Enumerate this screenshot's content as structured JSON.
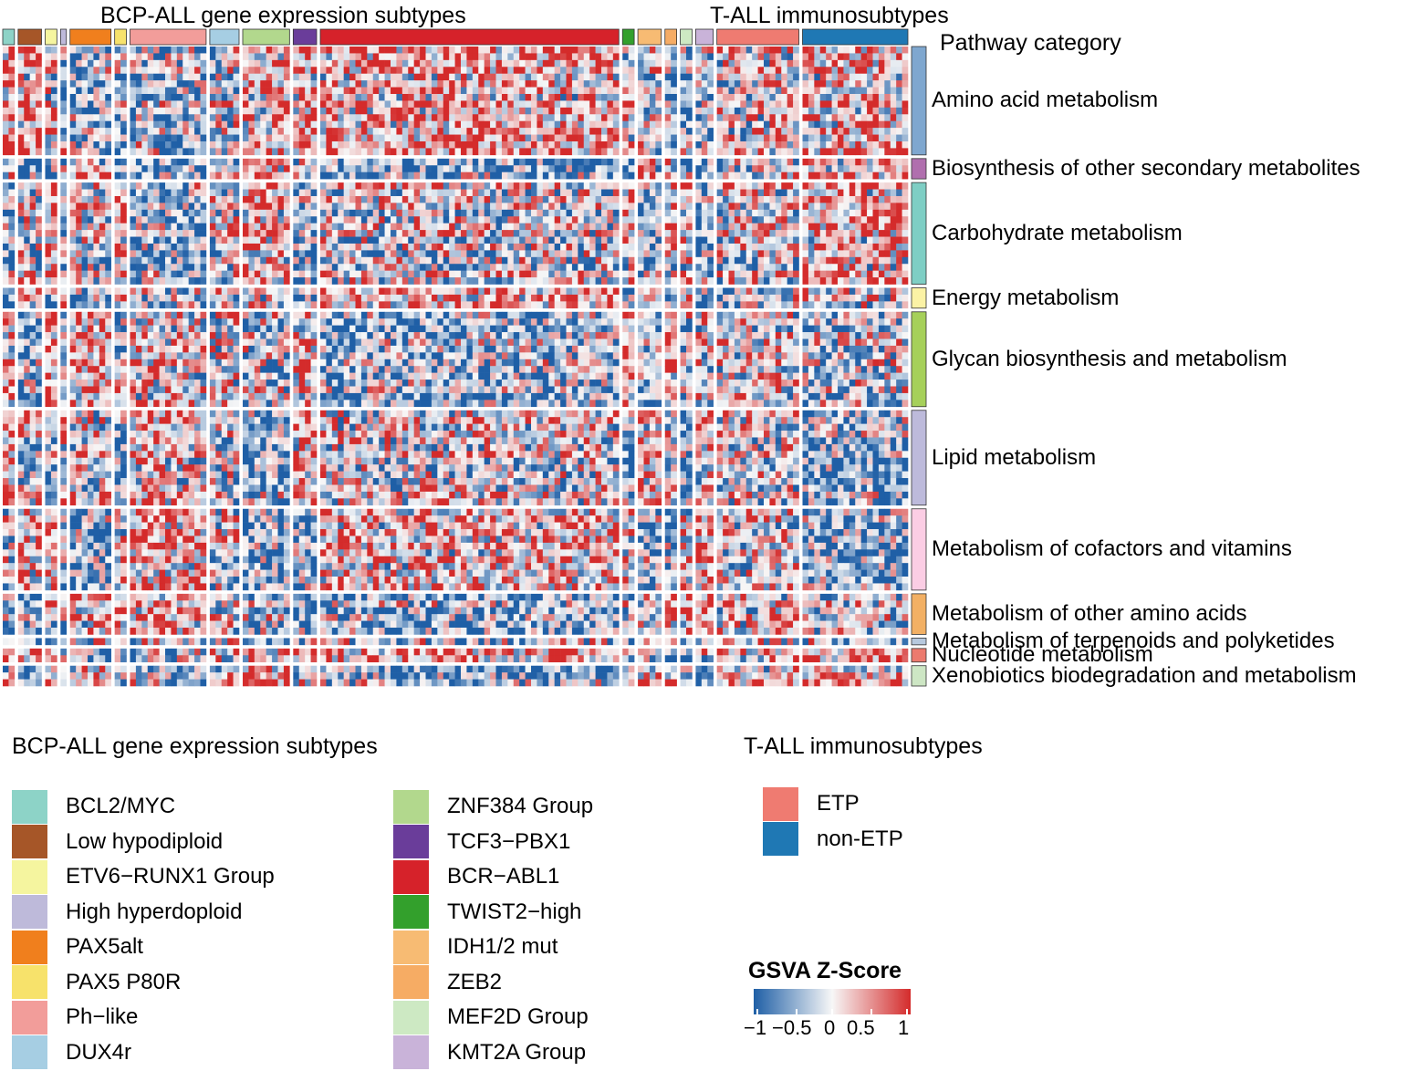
{
  "chart_data": {
    "type": "heatmap",
    "column_annotation_titles": [
      "BCP-ALL gene expression subtypes",
      "T-ALL immunosubtypes"
    ],
    "row_annotation_title": "Pathway category",
    "column_groups": [
      {
        "group": "BCL2/MYC",
        "n": 2
      },
      {
        "group": "Low hypodiploid",
        "n": 4
      },
      {
        "group": "ETV6−RUNX1 Group",
        "n": 2
      },
      {
        "group": "High hyperdoploid",
        "n": 1
      },
      {
        "group": "PAX5alt",
        "n": 7
      },
      {
        "group": "PAX5 P80R",
        "n": 2
      },
      {
        "group": "Ph−like",
        "n": 13
      },
      {
        "group": "DUX4r",
        "n": 5
      },
      {
        "group": "ZNF384 Group",
        "n": 8
      },
      {
        "group": "TCF3−PBX1",
        "n": 4
      },
      {
        "group": "BCR−ABL1",
        "n": 51
      },
      {
        "group": "TWIST2−high",
        "n": 2
      },
      {
        "group": "IDH1/2 mut",
        "n": 4
      },
      {
        "group": "ZEB2",
        "n": 2
      },
      {
        "group": "MEF2D Group",
        "n": 2
      },
      {
        "group": "KMT2A Group",
        "n": 3
      },
      {
        "group": "ETP",
        "n": 14
      },
      {
        "group": "non-ETP",
        "n": 18
      }
    ],
    "row_groups": [
      {
        "category": "Amino acid metabolism",
        "n": 16,
        "color": "#7fa7cf"
      },
      {
        "category": "Biosynthesis of other secondary metabolites",
        "n": 3,
        "color": "#b06fae"
      },
      {
        "category": "Carbohydrate metabolism",
        "n": 15,
        "color": "#7ecec4"
      },
      {
        "category": "Energy metabolism",
        "n": 3,
        "color": "#fbf2a5"
      },
      {
        "category": "Glycan biosynthesis and metabolism",
        "n": 14,
        "color": "#a6d05a"
      },
      {
        "category": "Lipid metabolism",
        "n": 14,
        "color": "#bdbadb"
      },
      {
        "category": "Metabolism of cofactors and vitamins",
        "n": 12,
        "color": "#fbcde4"
      },
      {
        "category": "Metabolism of other amino acids",
        "n": 6,
        "color": "#f2b064"
      },
      {
        "category": "Metabolism of terpenoids and polyketides",
        "n": 1,
        "color": "#b7c9de"
      },
      {
        "category": "Nucleotide metabolism",
        "n": 2,
        "color": "#ec7a6e"
      },
      {
        "category": "Xenobiotics biodegradation and metabolism",
        "n": 3,
        "color": "#cde6c4"
      }
    ],
    "value_range": [
      -1,
      1
    ],
    "colors": {
      "low": "#1f5fa6",
      "mid": "#f7f7f7",
      "high": "#d42b2b"
    }
  },
  "legend_bcp": {
    "title": "BCP-ALL gene expression subtypes",
    "items": [
      {
        "label": "BCL2/MYC",
        "color": "#8dd3c7"
      },
      {
        "label": "Low hypodiploid",
        "color": "#a65628"
      },
      {
        "label": "ETV6−RUNX1 Group",
        "color": "#f5f59f"
      },
      {
        "label": "High hyperdoploid",
        "color": "#bebada"
      },
      {
        "label": "PAX5alt",
        "color": "#f07f1d"
      },
      {
        "label": "PAX5 P80R",
        "color": "#f7e26b"
      },
      {
        "label": "Ph−like",
        "color": "#f29d9a"
      },
      {
        "label": "DUX4r",
        "color": "#a6cee3"
      },
      {
        "label": "ZNF384 Group",
        "color": "#b2d88d"
      },
      {
        "label": "TCF3−PBX1",
        "color": "#6a3d9a"
      },
      {
        "label": "BCR−ABL1",
        "color": "#d6222a"
      },
      {
        "label": "TWIST2−high",
        "color": "#33a02c"
      },
      {
        "label": "IDH1/2 mut",
        "color": "#f7bb73"
      },
      {
        "label": "ZEB2",
        "color": "#f6ac64"
      },
      {
        "label": "MEF2D Group",
        "color": "#cde9c3"
      },
      {
        "label": "KMT2A Group",
        "color": "#c9b3d9"
      }
    ]
  },
  "legend_tall": {
    "title": "T-ALL immunosubtypes",
    "items": [
      {
        "label": "ETP",
        "color": "#ef7b71"
      },
      {
        "label": "non-ETP",
        "color": "#1f78b4"
      }
    ]
  },
  "colorbar": {
    "title": "GSVA  Z-Score",
    "ticks": [
      "−1",
      "−0.5",
      "0",
      "0.5",
      "1"
    ]
  }
}
